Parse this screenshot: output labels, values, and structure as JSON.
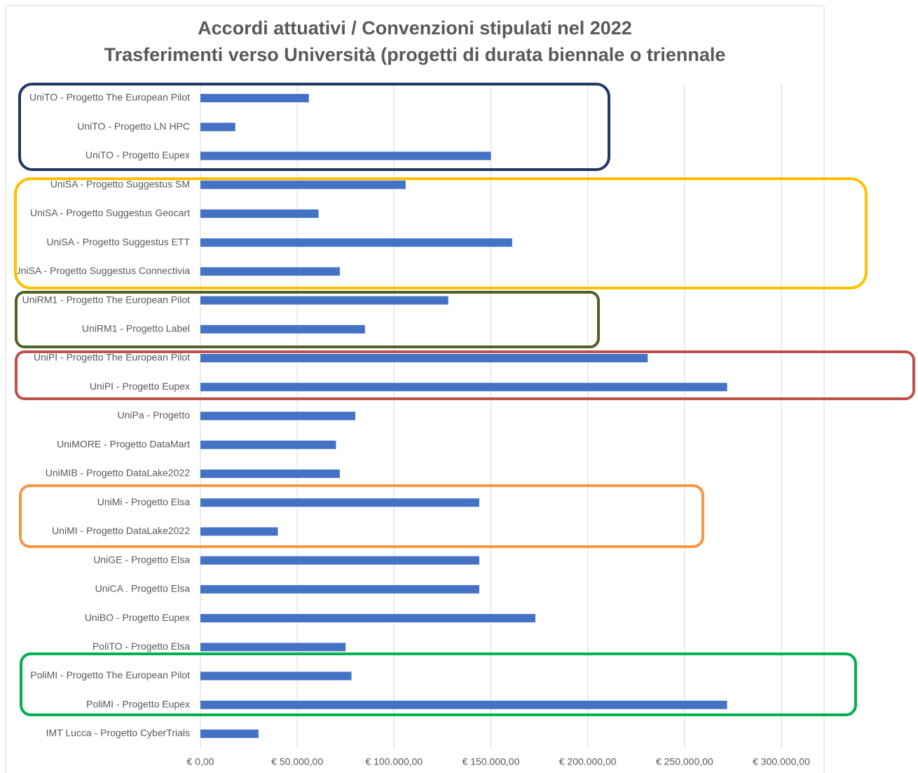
{
  "chart_data": {
    "type": "barh",
    "title": "Accordi attuativi / Convenzioni stipulati nel 2022",
    "subtitle": "Trasferimenti verso Università (progetti di durata biennale o triennale",
    "categories": [
      "UniTO - Progetto The European Pilot",
      "UniTO - Progetto LN HPC",
      "UniTO - Progetto Eupex",
      "UniSA - Progetto Suggestus SM",
      "UniSA - Progetto Suggestus Geocart",
      "UniSA - Progetto Suggestus ETT",
      "UniSA - Progetto Suggestus Connectivia",
      "UniRM1 - Progetto The European Pilot",
      "UniRM1 - Progetto Label",
      "UniPI - Progetto The European Pilot",
      "UniPI - Progetto Eupex",
      "UniPa - Progetto",
      "UniMORE - Progetto DataMart",
      "UniMIB - Progetto DataLake2022",
      "UniMi - Progetto Elsa",
      "UniMI - Progetto DataLake2022",
      "UniGE - Progetto Elsa",
      "UniCA . Progetto Elsa",
      "UniBO - Progetto Eupex",
      "PoliTO - Progetto Elsa",
      "PoliMI - Progetto The European Pilot",
      "PoliMI - Progetto Eupex",
      "IMT Lucca - Progetto CyberTrials"
    ],
    "values": [
      56000,
      18000,
      150000,
      106000,
      61000,
      161000,
      72000,
      128000,
      85000,
      231000,
      272000,
      80000,
      70000,
      72000,
      144000,
      40000,
      144000,
      144000,
      173000,
      75000,
      78000,
      272000,
      30000
    ],
    "color": "#4472c4",
    "xlim": [
      0,
      300000
    ],
    "xticks": [
      {
        "value": 0,
        "label": "€ 0,00"
      },
      {
        "value": 50000,
        "label": "€ 50.000,00"
      },
      {
        "value": 100000,
        "label": "€ 100.000,00"
      },
      {
        "value": 150000,
        "label": "€ 150.000,00"
      },
      {
        "value": 200000,
        "label": "€ 200.000,00"
      },
      {
        "value": 250000,
        "label": "€ 250.000,00"
      },
      {
        "value": 300000,
        "label": "€ 300.000,00"
      }
    ],
    "grid": true
  }
}
